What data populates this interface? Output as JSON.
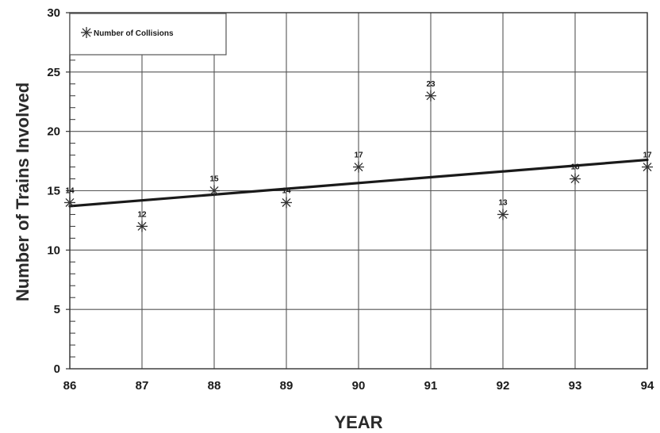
{
  "chart_data": {
    "type": "scatter",
    "xlabel": "YEAR",
    "ylabel": "Number of Trains Involved",
    "xlim": [
      86,
      94
    ],
    "ylim": [
      0,
      30
    ],
    "x_ticks": [
      86,
      87,
      88,
      89,
      90,
      91,
      92,
      93,
      94
    ],
    "y_ticks": [
      0,
      5,
      10,
      15,
      20,
      25,
      30
    ],
    "grid": true,
    "legend": {
      "position": "top-left",
      "entries": [
        "Number of Collisions"
      ]
    },
    "series": [
      {
        "name": "Number of Collisions",
        "marker": "asterisk",
        "x": [
          86,
          87,
          88,
          89,
          90,
          91,
          92,
          93,
          94
        ],
        "y": [
          14,
          12,
          15,
          14,
          17,
          23,
          13,
          16,
          17
        ],
        "labels": [
          "14",
          "12",
          "15",
          "14",
          "17",
          "23",
          "13",
          "16",
          "17"
        ]
      }
    ],
    "trendline": {
      "type": "linear",
      "x": [
        86,
        94
      ],
      "y": [
        13.7,
        17.6
      ]
    },
    "colors": {
      "grid": "#555555",
      "marker": "#333333",
      "trendline": "#1a1a1a"
    }
  }
}
